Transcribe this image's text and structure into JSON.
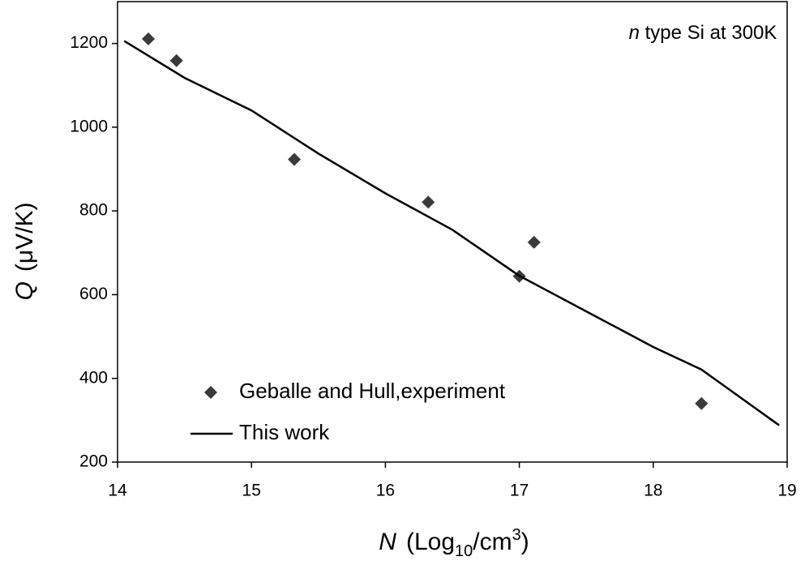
{
  "chart_data": {
    "type": "scatter",
    "annotation": {
      "italic": "n",
      "text": "type Si at 300K"
    },
    "x_label": {
      "symbol": "N",
      "parts": [
        "(Log",
        "10",
        "/cm",
        "3",
        ")"
      ]
    },
    "y_label": {
      "symbol": "Q",
      "unit": "(μV/K)"
    },
    "xlim": [
      14,
      19
    ],
    "xticks": [
      14,
      15,
      16,
      17,
      18,
      19
    ],
    "ylim": [
      200,
      1300
    ],
    "yticks": [
      200,
      400,
      600,
      800,
      1000,
      1200
    ],
    "series": [
      {
        "name": "Geballe and Hull,experiment",
        "color": "#3a3a3a",
        "mode": "markers",
        "x": [
          14.23,
          14.44,
          15.32,
          16.32,
          17.0,
          17.11,
          18.36
        ],
        "values": [
          1211,
          1159,
          923,
          821,
          644,
          725,
          340
        ]
      },
      {
        "name": "This work",
        "color": "#000000",
        "mode": "line",
        "x": [
          14.05,
          14.5,
          15,
          15.5,
          16,
          16.5,
          17,
          17.5,
          18,
          18.36,
          18.94
        ],
        "values": [
          1206,
          1118,
          1040,
          937,
          842,
          755,
          645,
          560,
          475,
          421,
          288
        ]
      }
    ]
  }
}
